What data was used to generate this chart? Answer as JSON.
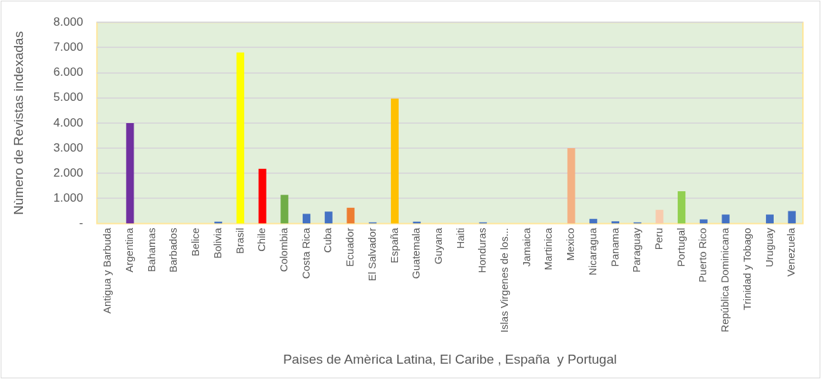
{
  "chart_data": {
    "type": "bar",
    "xlabel": "Paises de Amèrica Latina, El Caribe , España  y Portugal",
    "ylabel": "Nùmero de Revistas indexadas",
    "categories": [
      "Antigua y Barbuda",
      "Argentina",
      "Bahamas",
      "Barbados",
      "Belice",
      "Bolivia",
      "Brasil",
      "Chile",
      "Colombia",
      "Costa Rica",
      "Cuba",
      "Ecuador",
      "El Salvador",
      "España",
      "Guatemala",
      "Guyana",
      "Haiti",
      "Honduras",
      "Islas Virgenes de los...",
      "Jamaica",
      "Martinica",
      "Mexico",
      "Nicaragua",
      "Panama",
      "Paraguay",
      "Peru",
      "Portugal",
      "Puerto Rico",
      "República Dominicana",
      "Trinidad y Tobago",
      "Uruguay",
      "Venezuela"
    ],
    "values": [
      0,
      4000,
      0,
      0,
      0,
      80,
      6800,
      2180,
      1140,
      390,
      480,
      630,
      50,
      4970,
      80,
      0,
      0,
      50,
      0,
      0,
      0,
      3000,
      190,
      90,
      50,
      550,
      1290,
      170,
      360,
      0,
      360,
      500
    ],
    "colors": [
      "#4472c4",
      "#7030a0",
      "#4472c4",
      "#4472c4",
      "#4472c4",
      "#4472c4",
      "#ffff00",
      "#ff0000",
      "#70ad47",
      "#4472c4",
      "#4472c4",
      "#ed7d31",
      "#4472c4",
      "#ffc000",
      "#4472c4",
      "#4472c4",
      "#4472c4",
      "#4472c4",
      "#4472c4",
      "#4472c4",
      "#4472c4",
      "#f4b183",
      "#4472c4",
      "#4472c4",
      "#4472c4",
      "#f8cbad",
      "#92d050",
      "#4472c4",
      "#4472c4",
      "#4472c4",
      "#4472c4",
      "#4472c4"
    ],
    "ylim": [
      0,
      8000
    ],
    "yticks": [
      {
        "value": 0,
        "label": "-"
      },
      {
        "value": 1000,
        "label": "1.000"
      },
      {
        "value": 2000,
        "label": "2.000"
      },
      {
        "value": 3000,
        "label": "3.000"
      },
      {
        "value": 4000,
        "label": "4.000"
      },
      {
        "value": 5000,
        "label": "5.000"
      },
      {
        "value": 6000,
        "label": "6.000"
      },
      {
        "value": 7000,
        "label": "7.000"
      },
      {
        "value": 8000,
        "label": "8.000"
      }
    ],
    "grid": "y",
    "legend": false
  }
}
